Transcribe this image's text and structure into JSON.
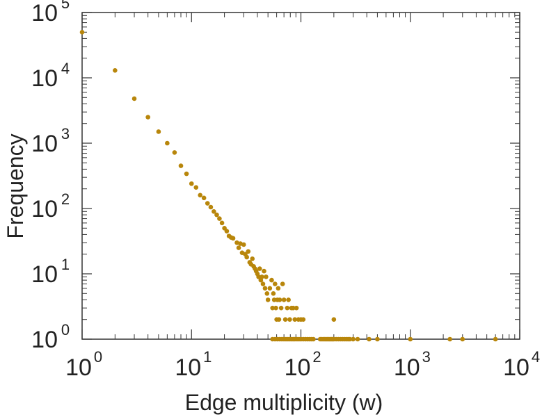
{
  "chart_data": {
    "type": "scatter",
    "title": "",
    "xlabel": "Edge multiplicity (w)",
    "ylabel": "Frequency",
    "xscale": "log",
    "yscale": "log",
    "xlim": [
      1,
      10000
    ],
    "ylim": [
      1,
      100000
    ],
    "grid": false,
    "x_tick_labels": [
      {
        "base": "10",
        "exp": "0"
      },
      {
        "base": "10",
        "exp": "1"
      },
      {
        "base": "10",
        "exp": "2"
      },
      {
        "base": "10",
        "exp": "3"
      },
      {
        "base": "10",
        "exp": "4"
      }
    ],
    "y_tick_labels": [
      {
        "base": "10",
        "exp": "0"
      },
      {
        "base": "10",
        "exp": "1"
      },
      {
        "base": "10",
        "exp": "2"
      },
      {
        "base": "10",
        "exp": "3"
      },
      {
        "base": "10",
        "exp": "4"
      },
      {
        "base": "10",
        "exp": "5"
      }
    ],
    "marker_color": "#B8860B",
    "series": [
      {
        "points": [
          [
            1,
            50000
          ],
          [
            2,
            13000
          ],
          [
            3,
            4800
          ],
          [
            4,
            2500
          ],
          [
            5,
            1500
          ],
          [
            6,
            1000
          ],
          [
            7,
            720
          ],
          [
            8,
            450
          ],
          [
            9,
            340
          ],
          [
            10,
            240
          ],
          [
            11,
            210
          ],
          [
            12,
            160
          ],
          [
            13,
            145
          ],
          [
            14,
            120
          ],
          [
            15,
            105
          ],
          [
            16,
            90
          ],
          [
            17,
            80
          ],
          [
            18,
            70
          ],
          [
            19,
            60
          ],
          [
            20,
            50
          ],
          [
            21,
            45
          ],
          [
            22,
            38
          ],
          [
            23,
            36
          ],
          [
            24,
            35
          ],
          [
            26,
            30
          ],
          [
            27,
            25
          ],
          [
            28,
            29
          ],
          [
            29,
            21
          ],
          [
            30,
            28
          ],
          [
            31,
            20
          ],
          [
            32,
            18
          ],
          [
            33,
            22
          ],
          [
            34,
            15
          ],
          [
            35,
            14
          ],
          [
            36,
            17
          ],
          [
            37,
            13
          ],
          [
            38,
            12
          ],
          [
            39,
            11
          ],
          [
            40,
            10
          ],
          [
            41,
            9
          ],
          [
            42,
            12
          ],
          [
            43,
            8
          ],
          [
            44,
            9
          ],
          [
            45,
            7
          ],
          [
            46,
            11
          ],
          [
            47,
            6
          ],
          [
            48,
            9
          ],
          [
            49,
            5
          ],
          [
            50,
            4
          ],
          [
            52,
            6
          ],
          [
            54,
            8
          ],
          [
            55,
            3
          ],
          [
            56,
            5
          ],
          [
            57,
            4
          ],
          [
            58,
            7
          ],
          [
            59,
            3
          ],
          [
            60,
            2
          ],
          [
            61,
            4
          ],
          [
            62,
            6
          ],
          [
            63,
            2
          ],
          [
            64,
            4
          ],
          [
            66,
            3
          ],
          [
            68,
            7
          ],
          [
            70,
            4
          ],
          [
            72,
            2
          ],
          [
            75,
            3
          ],
          [
            77,
            4
          ],
          [
            79,
            2
          ],
          [
            82,
            3
          ],
          [
            85,
            3
          ],
          [
            88,
            2
          ],
          [
            91,
            3
          ],
          [
            95,
            2
          ],
          [
            100,
            2
          ],
          [
            105,
            2
          ],
          [
            200,
            2
          ],
          [
            55,
            1
          ],
          [
            58,
            1
          ],
          [
            61,
            1
          ],
          [
            64,
            1
          ],
          [
            67,
            1
          ],
          [
            70,
            1
          ],
          [
            73,
            1
          ],
          [
            76,
            1
          ],
          [
            79,
            1
          ],
          [
            82,
            1
          ],
          [
            85,
            1
          ],
          [
            88,
            1
          ],
          [
            92,
            1
          ],
          [
            96,
            1
          ],
          [
            100,
            1
          ],
          [
            105,
            1
          ],
          [
            110,
            1
          ],
          [
            115,
            1
          ],
          [
            120,
            1
          ],
          [
            125,
            1
          ],
          [
            130,
            1
          ],
          [
            150,
            1
          ],
          [
            155,
            1
          ],
          [
            160,
            1
          ],
          [
            165,
            1
          ],
          [
            170,
            1
          ],
          [
            175,
            1
          ],
          [
            180,
            1
          ],
          [
            185,
            1
          ],
          [
            190,
            1
          ],
          [
            195,
            1
          ],
          [
            200,
            1
          ],
          [
            210,
            1
          ],
          [
            220,
            1
          ],
          [
            230,
            1
          ],
          [
            240,
            1
          ],
          [
            250,
            1
          ],
          [
            260,
            1
          ],
          [
            270,
            1
          ],
          [
            280,
            1
          ],
          [
            300,
            1
          ],
          [
            330,
            1
          ],
          [
            420,
            1
          ],
          [
            500,
            1
          ],
          [
            1000,
            1
          ],
          [
            2300,
            1
          ],
          [
            3000,
            1
          ],
          [
            6000,
            1
          ]
        ]
      }
    ]
  }
}
